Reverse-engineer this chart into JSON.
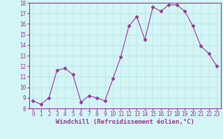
{
  "x": [
    0,
    1,
    2,
    3,
    4,
    5,
    6,
    7,
    8,
    9,
    10,
    11,
    12,
    13,
    14,
    15,
    16,
    17,
    18,
    19,
    20,
    21,
    22,
    23
  ],
  "y": [
    8.7,
    8.4,
    9.0,
    11.6,
    11.8,
    11.2,
    8.6,
    9.2,
    9.0,
    8.7,
    10.8,
    12.9,
    15.8,
    16.7,
    14.5,
    17.6,
    17.2,
    17.8,
    17.8,
    17.2,
    15.8,
    13.9,
    13.2,
    12.0
  ],
  "xlim": [
    -0.5,
    23.5
  ],
  "ylim": [
    8,
    18
  ],
  "yticks": [
    8,
    9,
    10,
    11,
    12,
    13,
    14,
    15,
    16,
    17,
    18
  ],
  "xticks": [
    0,
    1,
    2,
    3,
    4,
    5,
    6,
    7,
    8,
    9,
    10,
    11,
    12,
    13,
    14,
    15,
    16,
    17,
    18,
    19,
    20,
    21,
    22,
    23
  ],
  "xlabel": "Windchill (Refroidissement éolien,°C)",
  "line_color": "#993399",
  "marker": "D",
  "marker_size": 2.5,
  "bg_color": "#d4f5f5",
  "grid_color": "#b8e8e8",
  "tick_color": "#993399",
  "label_fontsize": 5.5,
  "xlabel_fontsize": 6.5
}
